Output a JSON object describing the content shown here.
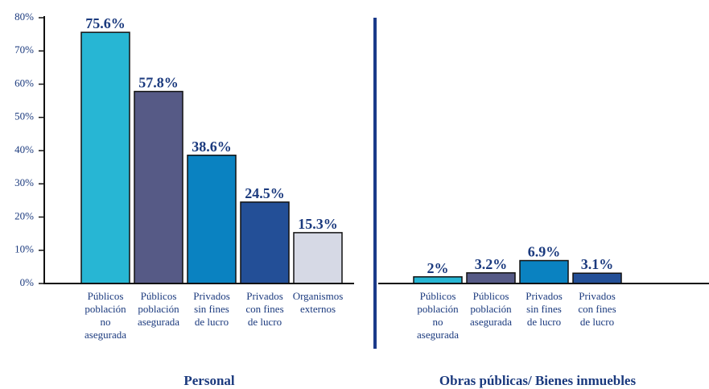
{
  "chart_data": [
    {
      "type": "bar",
      "title": "Personal",
      "categories": [
        "Públicos\npoblación\nno\nasegurada",
        "Públicos\npoblación\nasegurada",
        "Privados\nsin fines\nde lucro",
        "Privados\ncon fines\nde lucro",
        "Organismos\nexternos"
      ],
      "values": [
        75.6,
        57.8,
        38.6,
        24.5,
        15.3
      ],
      "value_labels": [
        "75.6%",
        "57.8%",
        "38.6%",
        "24.5%",
        "15.3%"
      ],
      "colors": [
        "#27b6d4",
        "#565a86",
        "#0a82c1",
        "#234f97",
        "#d6d9e5"
      ],
      "ylim": [
        0,
        80
      ],
      "yticks": [
        {
          "value": 0,
          "label": "0%"
        },
        {
          "value": 10,
          "label": "10%"
        },
        {
          "value": 20,
          "label": "20%"
        },
        {
          "value": 30,
          "label": "30%"
        },
        {
          "value": 40,
          "label": "40%"
        },
        {
          "value": 50,
          "label": "50%"
        },
        {
          "value": 60,
          "label": "60%"
        },
        {
          "value": 70,
          "label": "70%"
        },
        {
          "value": 80,
          "label": "80%"
        }
      ]
    },
    {
      "type": "bar",
      "title": "Obras públicas/ Bienes inmuebles",
      "categories": [
        "Públicos\npoblación\nno\nasegurada",
        "Públicos\npoblación\nasegurada",
        "Privados\nsin fines\nde lucro",
        "Privados\ncon fines\nde lucro"
      ],
      "values": [
        2,
        3.2,
        6.9,
        3.1
      ],
      "value_labels": [
        "2%",
        "3.2%",
        "6.9%",
        "3.1%"
      ],
      "colors": [
        "#27b6d4",
        "#565a86",
        "#0a82c1",
        "#234f97"
      ],
      "ylim": [
        0,
        80
      ]
    }
  ]
}
